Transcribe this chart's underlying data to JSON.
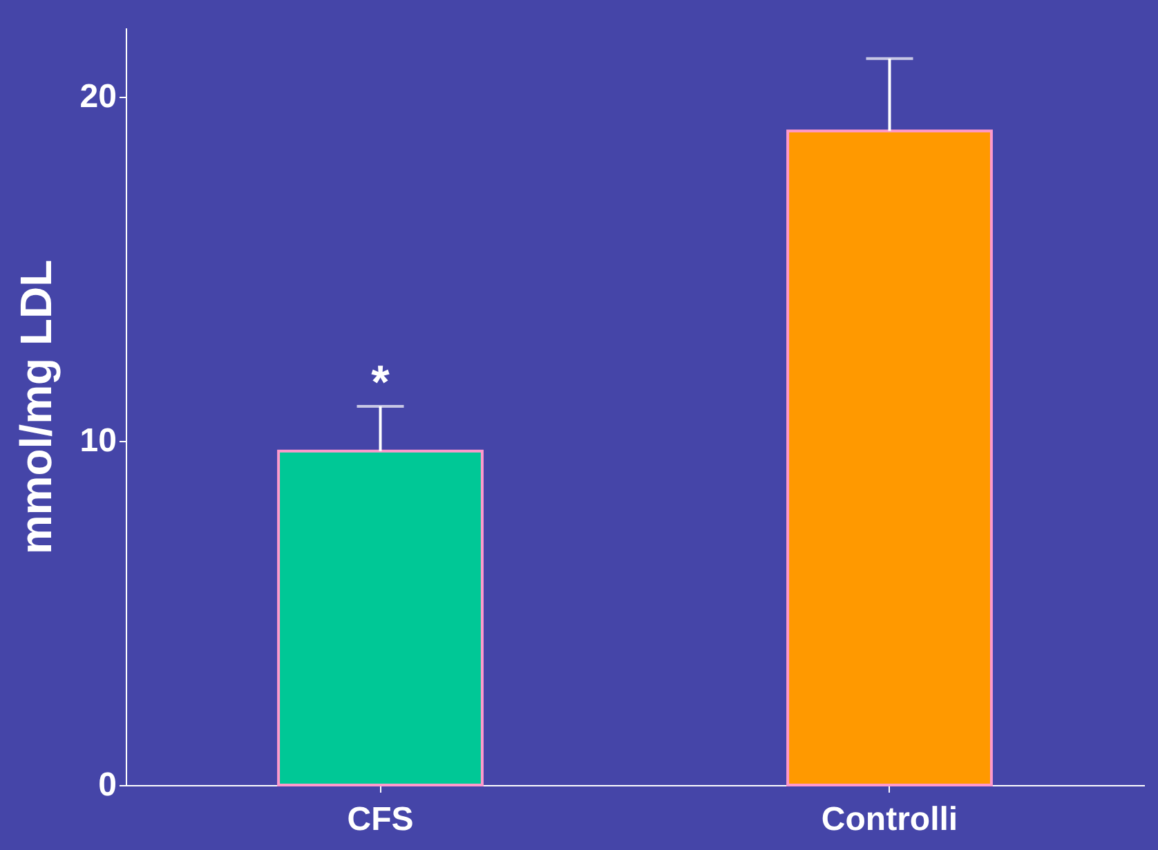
{
  "chart_data": {
    "type": "bar",
    "ylabel": "mmol/mg LDL",
    "categories": [
      "CFS",
      "Controlli"
    ],
    "values": [
      9.7,
      19.0
    ],
    "colors": [
      "#00c896",
      "#ff9900"
    ],
    "errors": [
      [
        9.7,
        11.0
      ],
      [
        19.0,
        21.1
      ]
    ],
    "ylim": [
      0,
      22
    ],
    "yticks": [
      0,
      10,
      20
    ],
    "grid": false,
    "annotations": [
      {
        "text": "*",
        "x": "CFS",
        "y": 11.0
      }
    ]
  }
}
